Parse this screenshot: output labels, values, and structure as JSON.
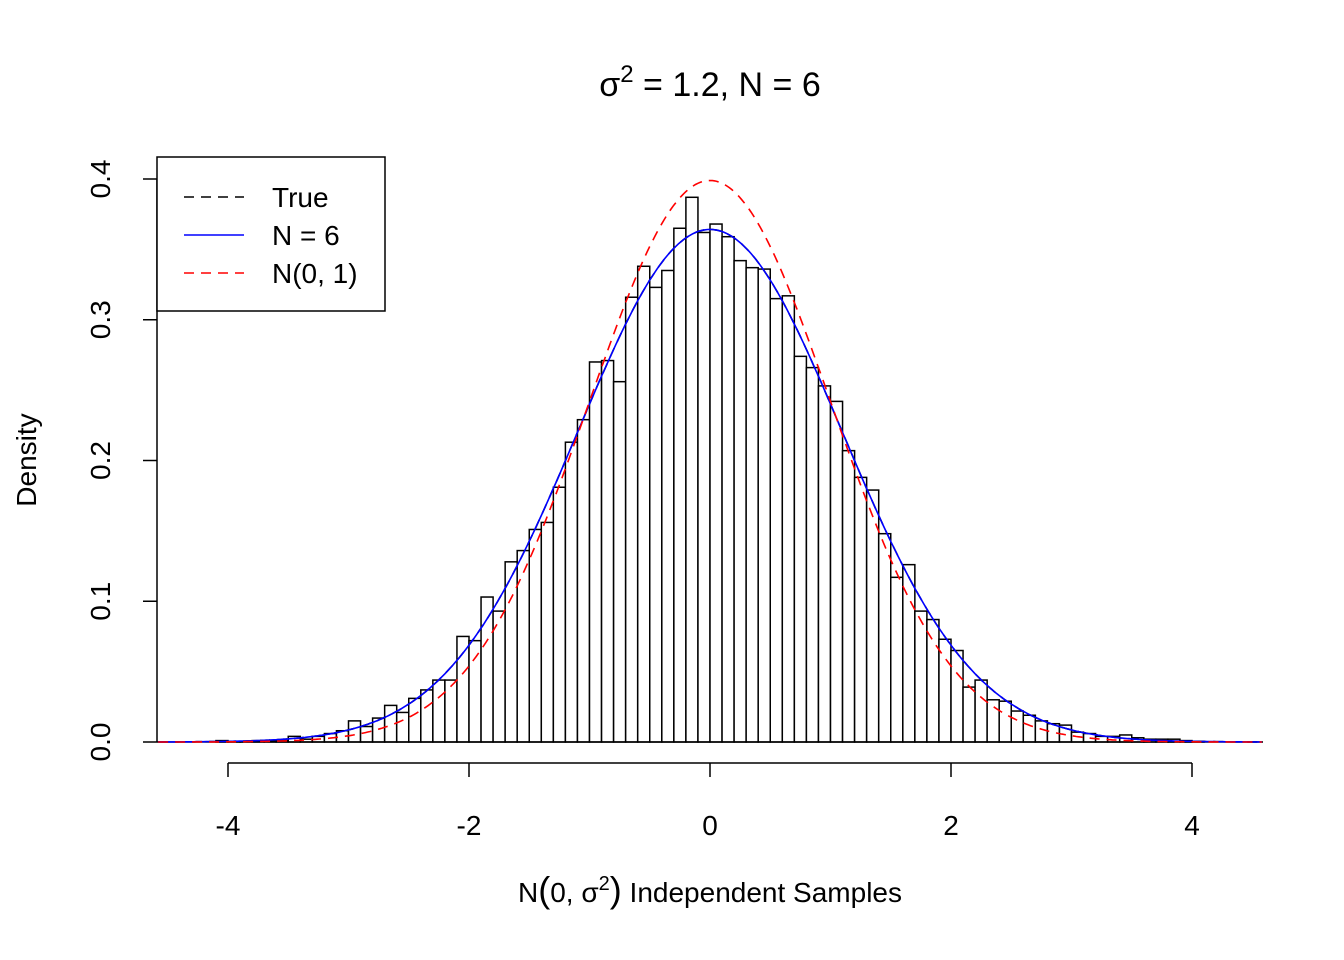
{
  "chart_data": {
    "type": "bar",
    "title_prefix": "σ",
    "title_sup": "2",
    "title_suffix": " = 1.2, N = 6",
    "xlabel_prefix": "N",
    "xlabel_inner": "0, σ",
    "xlabel_sup": "2",
    "xlabel_suffix": " Independent Samples",
    "ylabel": "Density",
    "xlim": [
      -4.58,
      4.58
    ],
    "ylim": [
      0,
      0.4
    ],
    "x_ticks": [
      -4,
      -2,
      0,
      2,
      4
    ],
    "x_tick_labels": [
      "-4",
      "-2",
      "0",
      "2",
      "4"
    ],
    "y_ticks": [
      0,
      0.1,
      0.2,
      0.3,
      0.4
    ],
    "y_tick_labels": [
      "0.0",
      "0.1",
      "0.2",
      "0.3",
      "0.4"
    ],
    "bin_start": -4.1,
    "bin_width": 0.1,
    "values": [
      0.001,
      0.0005,
      0.0005,
      0.001,
      0.001,
      0.001,
      0.004,
      0.002,
      0.004,
      0.006,
      0.008,
      0.015,
      0.011,
      0.017,
      0.026,
      0.021,
      0.031,
      0.037,
      0.044,
      0.044,
      0.075,
      0.072,
      0.103,
      0.093,
      0.128,
      0.136,
      0.151,
      0.156,
      0.181,
      0.213,
      0.229,
      0.27,
      0.271,
      0.256,
      0.316,
      0.338,
      0.323,
      0.335,
      0.365,
      0.387,
      0.362,
      0.368,
      0.359,
      0.342,
      0.337,
      0.336,
      0.315,
      0.317,
      0.274,
      0.266,
      0.253,
      0.242,
      0.207,
      0.188,
      0.179,
      0.148,
      0.117,
      0.126,
      0.093,
      0.087,
      0.073,
      0.065,
      0.039,
      0.044,
      0.03,
      0.029,
      0.022,
      0.019,
      0.015,
      0.013,
      0.012,
      0.007,
      0.006,
      0.004,
      0.004,
      0.005,
      0.003,
      0.002,
      0.002,
      0.002,
      0.001,
      0.0005
    ],
    "series": [
      {
        "name": "True",
        "variance": 1.2,
        "color": "#000000",
        "dash": true
      },
      {
        "name": "N = 6",
        "variance": 1.2,
        "color": "#0000ff",
        "dash": false
      },
      {
        "name": "N(0, 1)",
        "variance": 1.0,
        "color": "#ff0000",
        "dash": true
      }
    ],
    "legend_placement": "top-left",
    "grid": false
  }
}
